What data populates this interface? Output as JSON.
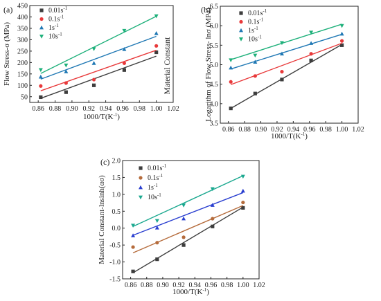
{
  "colors": {
    "s001": "#3d3d3d",
    "s01": "#e8393a",
    "s1": "#1f78b4",
    "s10": "#1db07a",
    "s01_c": "#b56b3b",
    "s1_c": "#2a3fd0",
    "s10_c": "#1aa88f"
  },
  "extra_label": "Material Constant",
  "chart_data": [
    {
      "panel": "(a)",
      "type": "scatter",
      "xlabel": "1000/T(K",
      "xlabel_sup": "-1",
      "xlabel_tail": ")",
      "ylabel": "Flow Stress-σ (MPa)",
      "xlim": [
        0.85,
        1.02
      ],
      "ylim": [
        25,
        450
      ],
      "xticks": [
        "0.86",
        "0.88",
        "0.90",
        "0.92",
        "0.94",
        "0.96",
        "0.98",
        "1.00",
        "1.02"
      ],
      "yticks": [
        "50",
        "100",
        "150",
        "200",
        "250",
        "300",
        "350",
        "400",
        "450"
      ],
      "x": [
        0.863,
        0.893,
        0.926,
        0.962,
        1.0
      ],
      "series": [
        {
          "name": "0.01s",
          "sup": "-1",
          "marker": "square",
          "values": [
            48,
            70,
            100,
            167,
            245
          ],
          "fit": [
            [
              0.863,
              43
            ],
            [
              1.0,
              228
            ]
          ]
        },
        {
          "name": "0.1s",
          "sup": "-1",
          "marker": "circle",
          "values": [
            97,
            110,
            125,
            197,
            273
          ],
          "fit": [
            [
              0.863,
              76
            ],
            [
              1.0,
              254
            ]
          ]
        },
        {
          "name": "1s",
          "sup": "-1",
          "marker": "triangle-up",
          "values": [
            137,
            160,
            197,
            258,
            328
          ],
          "fit": [
            [
              0.863,
              127
            ],
            [
              1.0,
              315
            ]
          ]
        },
        {
          "name": "10s",
          "sup": "-1",
          "marker": "triangle-down",
          "values": [
            168,
            188,
            260,
            340,
            404
          ],
          "fit": [
            [
              0.863,
              152
            ],
            [
              1.0,
              403
            ]
          ]
        }
      ]
    },
    {
      "panel": "(b)",
      "type": "scatter",
      "xlabel": "1000/T(K",
      "xlabel_sup": "-1",
      "xlabel_tail": ")",
      "ylabel": "Logarithm of Flow Stress- lnσ (MPa)",
      "xlim": [
        0.85,
        1.02
      ],
      "ylim": [
        3.5,
        6.5
      ],
      "xticks": [
        "0.86",
        "0.88",
        "0.90",
        "0.92",
        "0.94",
        "0.96",
        "0.98",
        "1.00",
        "1.02"
      ],
      "yticks": [
        "3.5",
        "4.0",
        "4.5",
        "5.0",
        "5.5",
        "6.0",
        "6.5"
      ],
      "x": [
        0.863,
        0.893,
        0.926,
        0.962,
        1.0
      ],
      "series": [
        {
          "name": "0.01s",
          "sup": "-1",
          "marker": "square",
          "values": [
            3.88,
            4.26,
            4.62,
            5.11,
            5.5
          ],
          "fit": [
            [
              0.863,
              3.88
            ],
            [
              1.0,
              5.52
            ]
          ]
        },
        {
          "name": "0.1s",
          "sup": "-1",
          "marker": "circle",
          "values": [
            4.56,
            4.71,
            4.82,
            5.28,
            5.61
          ],
          "fit": [
            [
              0.863,
              4.49
            ],
            [
              1.0,
              5.55
            ]
          ]
        },
        {
          "name": "1s",
          "sup": "-1",
          "marker": "triangle-up",
          "values": [
            4.92,
            5.07,
            5.28,
            5.55,
            5.79
          ],
          "fit": [
            [
              0.863,
              4.89
            ],
            [
              1.0,
              5.78
            ]
          ]
        },
        {
          "name": "10s",
          "sup": "-1",
          "marker": "triangle-down",
          "values": [
            5.12,
            5.24,
            5.56,
            5.83,
            6.0
          ],
          "fit": [
            [
              0.863,
              5.13
            ],
            [
              1.0,
              6.04
            ]
          ]
        }
      ]
    },
    {
      "panel": "(c)",
      "type": "scatter",
      "xlabel": "1000/T(K",
      "xlabel_sup": "-1",
      "xlabel_tail": ")",
      "ylabel": "Material Constant-lnsinh(ασ)",
      "xlim": [
        0.85,
        1.02
      ],
      "ylim": [
        -1.5,
        2.0
      ],
      "xticks": [
        "0.86",
        "0.88",
        "0.90",
        "0.92",
        "0.94",
        "0.96",
        "0.98",
        "1.00",
        "1.02"
      ],
      "yticks": [
        "-1.5",
        "-1.0",
        "-0.5",
        "0.0",
        "0.5",
        "1.0",
        "1.5",
        "2.0"
      ],
      "x": [
        0.863,
        0.893,
        0.926,
        0.962,
        1.0
      ],
      "series": [
        {
          "name": "0.01s",
          "sup": "-1",
          "marker": "square",
          "values": [
            -1.28,
            -0.92,
            -0.5,
            0.05,
            0.6
          ],
          "fit": [
            [
              0.863,
              -1.32
            ],
            [
              1.0,
              0.62
            ]
          ]
        },
        {
          "name": "0.1s",
          "sup": "-1",
          "marker": "circle",
          "values": [
            -0.56,
            -0.43,
            -0.27,
            0.28,
            0.76
          ],
          "fit": [
            [
              0.863,
              -0.73
            ],
            [
              1.0,
              0.67
            ]
          ]
        },
        {
          "name": "1s",
          "sup": "-1",
          "marker": "triangle-up",
          "values": [
            -0.22,
            0.01,
            0.28,
            0.68,
            1.1
          ],
          "fit": [
            [
              0.863,
              -0.21
            ],
            [
              1.0,
              1.05
            ]
          ]
        },
        {
          "name": "10s",
          "sup": "-1",
          "marker": "triangle-down",
          "values": [
            0.08,
            0.22,
            0.68,
            1.16,
            1.53
          ],
          "fit": [
            [
              0.863,
              0.05
            ],
            [
              1.0,
              1.55
            ]
          ]
        }
      ]
    }
  ]
}
